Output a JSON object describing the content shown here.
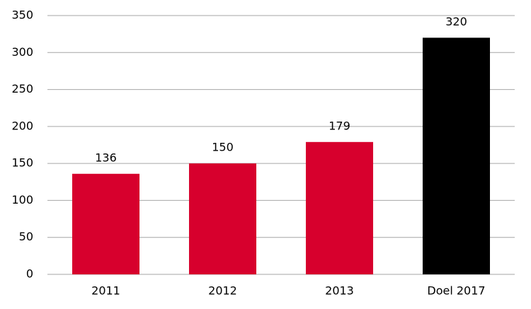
{
  "chart_data": {
    "type": "bar",
    "categories": [
      "2011",
      "2012",
      "2013",
      "Doel 2017"
    ],
    "values": [
      136,
      150,
      179,
      320
    ],
    "colors": [
      "#d7002d",
      "#d7002d",
      "#d7002d",
      "#000000"
    ],
    "ylim": [
      0,
      350
    ],
    "yticks": [
      0,
      50,
      100,
      150,
      200,
      250,
      300,
      350
    ],
    "grid": true
  }
}
